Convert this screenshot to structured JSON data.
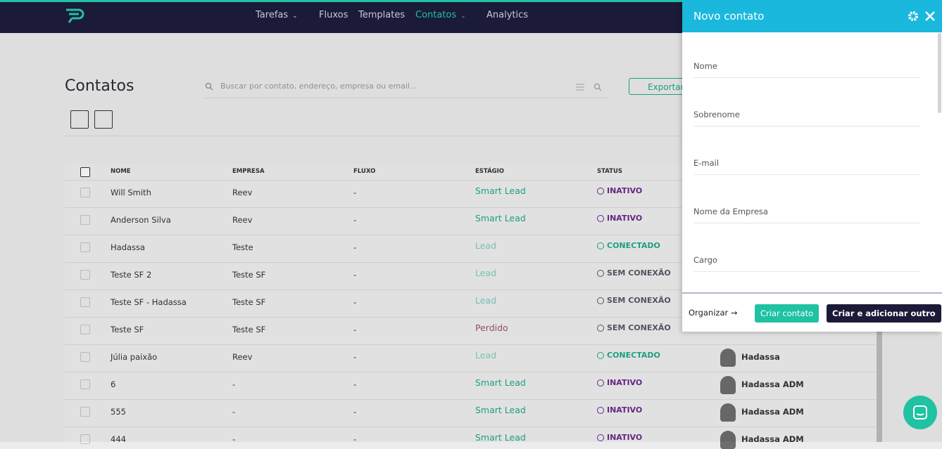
{
  "nav": {
    "items": [
      "Tarefas",
      "Fluxos",
      "Templates",
      "Contatos",
      "Analytics"
    ]
  },
  "page": {
    "title": "Contatos",
    "search_placeholder": "Buscar por contato, endereço, empresa ou email...",
    "export_button": "Exportar"
  },
  "table": {
    "headers": [
      "NOME",
      "EMPRESA",
      "FLUXO",
      "ESTÁGIO",
      "STATUS"
    ],
    "rows": [
      {
        "name": "Will Smith",
        "company": "Reev",
        "flow": "-",
        "stage": "Smart Lead",
        "stage_color": "#1fa88e",
        "status": "INATIVO",
        "status_color": "#6b2a8c"
      },
      {
        "name": "Anderson Silva",
        "company": "Reev",
        "flow": "-",
        "stage": "Smart Lead",
        "stage_color": "#1fa88e",
        "status": "INATIVO",
        "status_color": "#6b2a8c"
      },
      {
        "name": "Hadassa",
        "company": "Teste",
        "flow": "-",
        "stage": "Lead",
        "stage_color": "#7fcdbd",
        "status": "CONECTADO",
        "status_color": "#1fa88e"
      },
      {
        "name": "Teste SF 2",
        "company": "Teste SF",
        "flow": "-",
        "stage": "Lead",
        "stage_color": "#7fcdbd",
        "status": "SEM CONEXÃO",
        "status_color": "#555a66"
      },
      {
        "name": "Teste SF - Hadassa",
        "company": "Teste SF",
        "flow": "-",
        "stage": "Lead",
        "stage_color": "#7fcdbd",
        "status": "SEM CONEXÃO",
        "status_color": "#555a66"
      },
      {
        "name": "Teste SF",
        "company": "Teste SF",
        "flow": "-",
        "stage": "Perdido",
        "stage_color": "#a1506f",
        "status": "SEM CONEXÃO",
        "status_color": "#555a66"
      },
      {
        "name": "Júlia paixão",
        "company": "Reev",
        "flow": "-",
        "stage": "Lead",
        "stage_color": "#7fcdbd",
        "status": "CONECTADO",
        "status_color": "#1fa88e",
        "owner": "Hadassa"
      },
      {
        "name": "6",
        "company": "-",
        "flow": "-",
        "stage": "Smart Lead",
        "stage_color": "#1fa88e",
        "status": "INATIVO",
        "status_color": "#6b2a8c",
        "owner": "Hadassa ADM"
      },
      {
        "name": "555",
        "company": "-",
        "flow": "-",
        "stage": "Smart Lead",
        "stage_color": "#1fa88e",
        "status": "INATIVO",
        "status_color": "#6b2a8c",
        "owner": "Hadassa ADM"
      },
      {
        "name": "444",
        "company": "-",
        "flow": "-",
        "stage": "Smart Lead",
        "stage_color": "#1fa88e",
        "status": "INATIVO",
        "status_color": "#6b2a8c",
        "owner": "Hadassa ADM"
      }
    ]
  },
  "panel": {
    "title": "Novo contato",
    "fields": [
      "Nome",
      "Sobrenome",
      "E-mail",
      "Nome da Empresa",
      "Cargo"
    ],
    "organize": "Organizar",
    "create": "Criar contato",
    "create_another": "Criar e adicionar outro"
  }
}
